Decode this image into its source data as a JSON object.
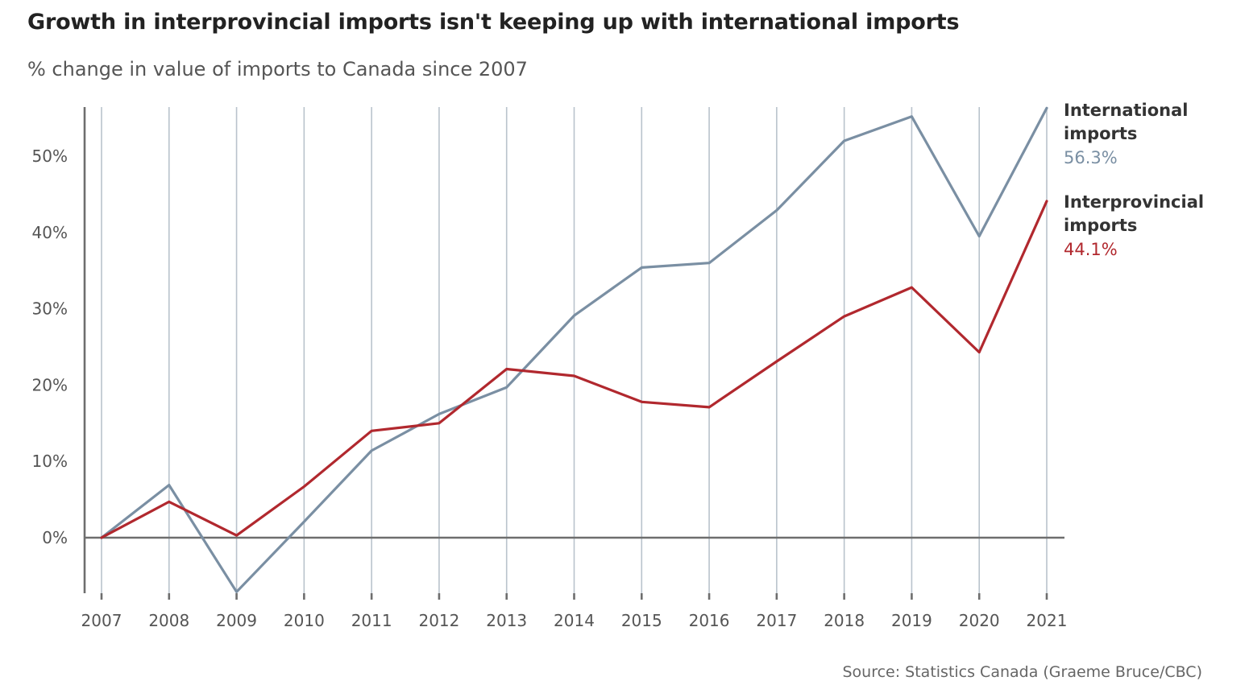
{
  "title": "Growth in interprovincial imports isn't keeping up with international imports",
  "subtitle": "% change in value of imports to Canada since 2007",
  "source": "Source: Statistics Canada (Graeme Bruce/CBC)",
  "colors": {
    "international": "#7a8fa3",
    "interprovincial": "#b1282e",
    "grid": "#b9c3cc",
    "axis": "#6e6e6e"
  },
  "chart_data": {
    "type": "line",
    "title": "Growth in interprovincial imports isn't keeping up with international imports",
    "subtitle": "% change in value of imports to Canada since 2007",
    "xlabel": "",
    "ylabel": "",
    "x": [
      2007,
      2008,
      2009,
      2010,
      2011,
      2012,
      2013,
      2014,
      2015,
      2016,
      2017,
      2018,
      2019,
      2020,
      2021
    ],
    "x_tick_labels": [
      "2007",
      "2008",
      "2009",
      "2010",
      "2011",
      "2012",
      "2013",
      "2014",
      "2015",
      "2016",
      "2017",
      "2018",
      "2019",
      "2020",
      "2021"
    ],
    "y_ticks": [
      0,
      10,
      20,
      30,
      40,
      50
    ],
    "y_tick_labels": [
      "0%",
      "10%",
      "20%",
      "30%",
      "40%",
      "50%"
    ],
    "ylim": [
      -7.2,
      56.3
    ],
    "grid": "vertical",
    "legend": "direct labels at line ends (right)",
    "series": [
      {
        "key": "international",
        "label_lines": [
          "International",
          "imports"
        ],
        "end_label": "56.3%",
        "color": "#7a8fa3",
        "values": [
          0,
          6.9,
          -7.1,
          2.1,
          11.4,
          16.2,
          19.7,
          29.1,
          35.4,
          36.0,
          42.9,
          52.0,
          55.2,
          39.5,
          56.3
        ]
      },
      {
        "key": "interprovincial",
        "label_lines": [
          "Interprovincial",
          "imports"
        ],
        "end_label": "44.1%",
        "color": "#b1282e",
        "values": [
          0,
          4.7,
          0.3,
          6.7,
          14.0,
          15.0,
          22.1,
          21.2,
          17.8,
          17.1,
          23.1,
          29.0,
          32.8,
          24.3,
          44.1
        ]
      }
    ]
  }
}
